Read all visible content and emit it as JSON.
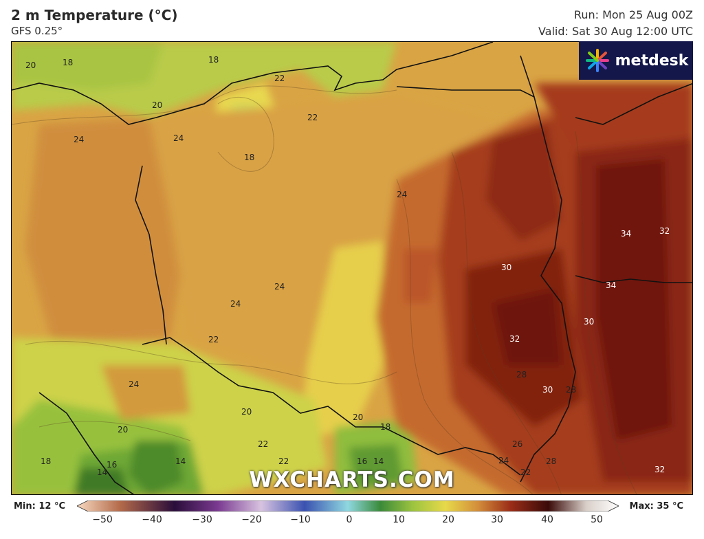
{
  "header": {
    "title": "2 m Temperature (°C)",
    "model": "GFS 0.25°",
    "run": "Run: Mon 25 Aug 00Z",
    "valid": "Valid: Sat 30 Aug 12:00 UTC"
  },
  "brand": {
    "name": "metdesk"
  },
  "watermark": "WXCHARTS.COM",
  "legend": {
    "min_label": "Min: 12 °C",
    "max_label": "Max: 35 °C",
    "ticks": [
      "−50",
      "−40",
      "−30",
      "−20",
      "−10",
      "0",
      "10",
      "20",
      "30",
      "40",
      "50"
    ]
  },
  "map_labels": [
    "20",
    "18",
    "18",
    "22",
    "20",
    "22",
    "24",
    "24",
    "18",
    "24",
    "24",
    "24",
    "24",
    "22",
    "24",
    "30",
    "34",
    "32",
    "34",
    "30",
    "32",
    "28",
    "30",
    "28",
    "20",
    "20",
    "18",
    "20",
    "22",
    "22",
    "16",
    "14",
    "18",
    "16",
    "14",
    "14",
    "26",
    "24",
    "22",
    "28",
    "32"
  ],
  "colors": {
    "cold_green": "#4e8c2c",
    "green": "#8cbf3f",
    "yellow_green": "#c9d54a",
    "yellow": "#e4d24a",
    "orange_light": "#dcae45",
    "orange": "#cf8f3a",
    "red_orange": "#c0632c",
    "red": "#a83a1e",
    "dark_red": "#7e1d10",
    "brand_bg": "#14174a"
  }
}
